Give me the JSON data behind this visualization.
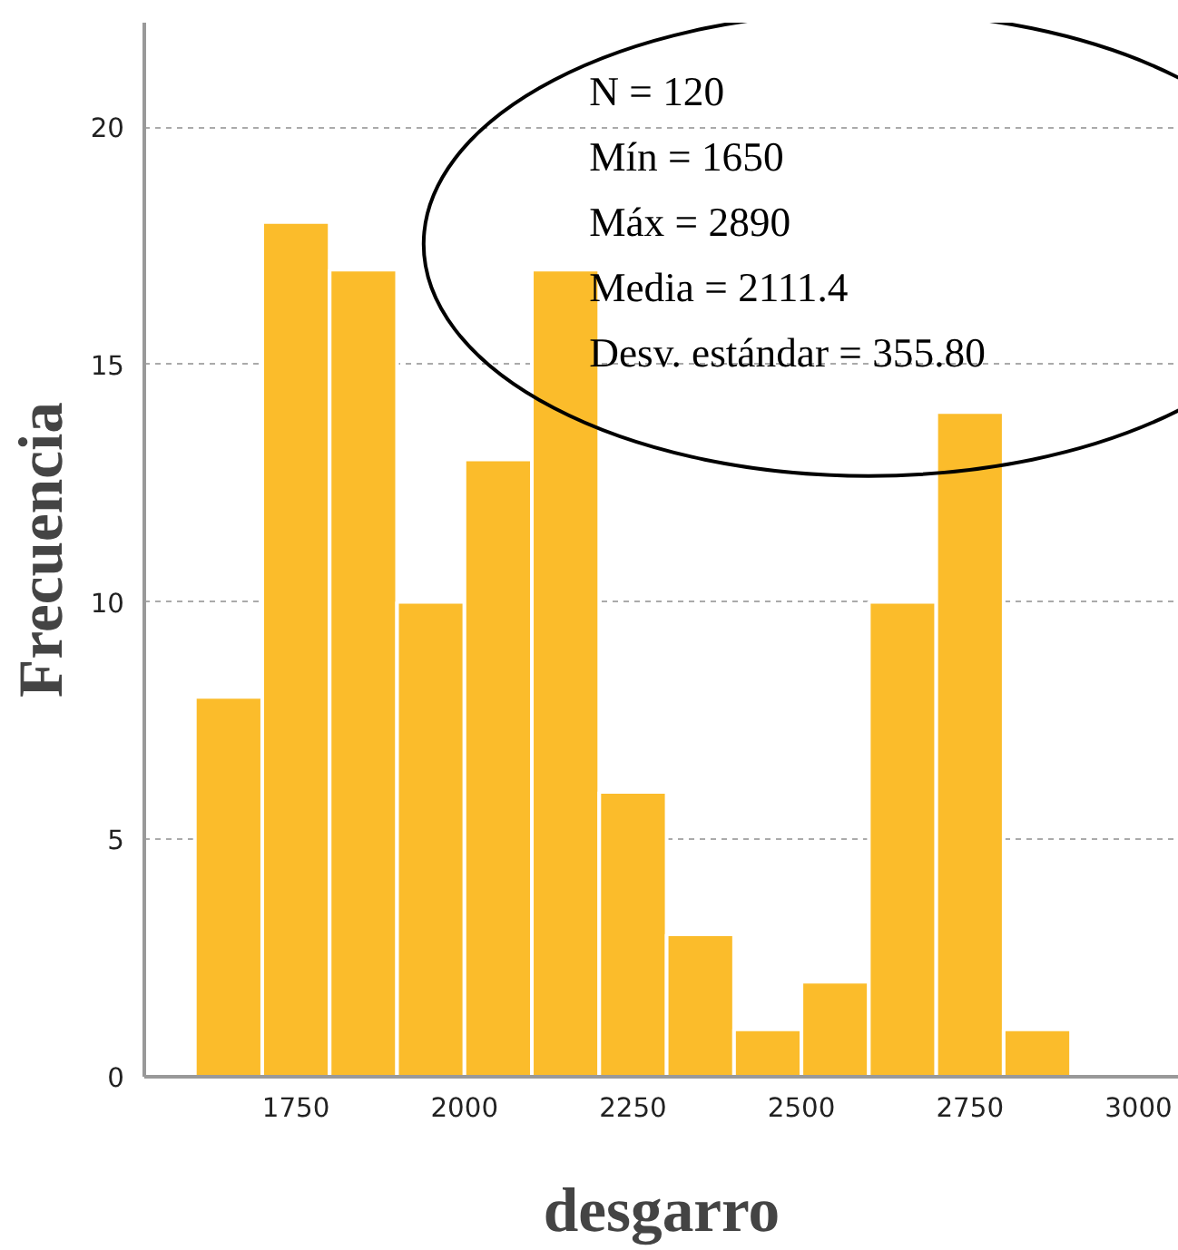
{
  "chart_data": {
    "type": "histogram",
    "xlabel": "desgarro",
    "ylabel": "Frecuencia",
    "bins": [
      1600,
      1700,
      1800,
      1900,
      2000,
      2100,
      2200,
      2300,
      2400,
      2500,
      2600,
      2700,
      2800,
      2900
    ],
    "values": [
      8,
      18,
      17,
      10,
      13,
      17,
      6,
      3,
      1,
      2,
      10,
      14,
      1
    ],
    "color": "#fbbc2b",
    "xlim": [
      1525,
      3060
    ],
    "xticks": [
      1750,
      2000,
      2250,
      2500,
      2750,
      3000
    ],
    "ylim": [
      0,
      22.2
    ],
    "yticks": [
      0,
      5,
      10,
      15,
      20
    ],
    "grid": "y",
    "annotations": [
      "N = 120",
      "Mín = 1650",
      "Máx = 2890",
      "Media = 2111.4",
      "Desv. estándar = 355.80"
    ]
  }
}
